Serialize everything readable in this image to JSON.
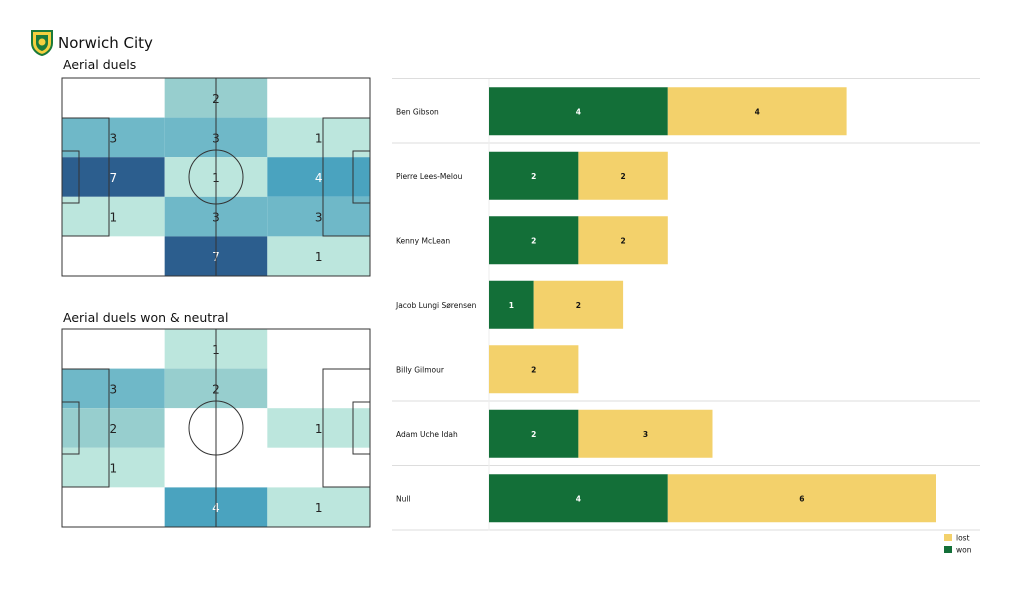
{
  "header": {
    "team": "Norwich City",
    "crest": "canary-crest-icon"
  },
  "colors": {
    "won": "#136f38",
    "lost": "#f3d16b",
    "heat": [
      "#ffffff",
      "#bce6dd",
      "#97cece",
      "#6fb8c8",
      "#4aa3bf",
      "#3a8bb3",
      "#2c5e8e"
    ]
  },
  "pitches": [
    {
      "title": "Aerial duels",
      "grid": [
        [
          0,
          2,
          0
        ],
        [
          3,
          3,
          1
        ],
        [
          7,
          1,
          4
        ],
        [
          1,
          3,
          3
        ],
        [
          0,
          7,
          1
        ]
      ]
    },
    {
      "title": "Aerial duels won & neutral",
      "grid": [
        [
          0,
          1,
          0
        ],
        [
          3,
          2,
          0
        ],
        [
          2,
          0,
          1
        ],
        [
          1,
          0,
          0
        ],
        [
          0,
          4,
          1
        ]
      ]
    }
  ],
  "chart_data": {
    "type": "bar",
    "orientation": "horizontal",
    "stacked": true,
    "categories": [
      "Ben Gibson",
      "Pierre Lees-Melou",
      "Kenny McLean",
      "Jacob  Lungi Sørensen",
      "Billy Gilmour",
      "Adam Uche Idah",
      "Null"
    ],
    "series": [
      {
        "name": "won",
        "values": [
          4,
          2,
          2,
          1,
          0,
          2,
          4
        ]
      },
      {
        "name": "lost",
        "values": [
          4,
          2,
          2,
          2,
          2,
          3,
          6
        ]
      }
    ],
    "legend": {
      "position": "bottom-right",
      "entries": [
        "lost",
        "won"
      ]
    }
  }
}
